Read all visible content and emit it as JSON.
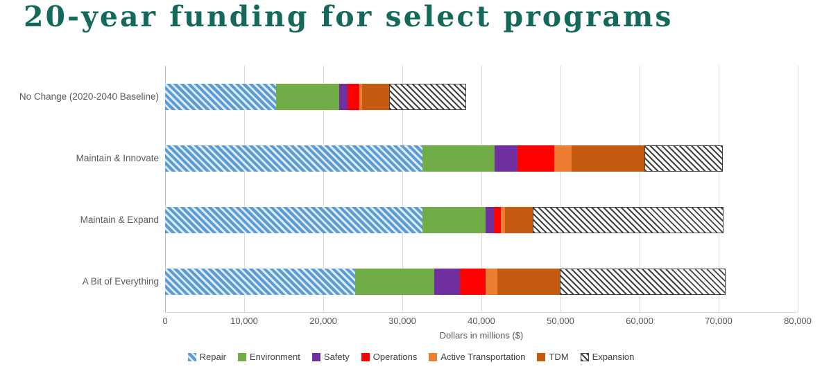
{
  "title": "20-year funding for select programs",
  "colors": {
    "title": "#15695B",
    "axis_text": "#595959",
    "gridline": "#D9D9D9"
  },
  "chart_data": {
    "type": "bar",
    "orientation": "horizontal",
    "stacked": true,
    "title": "20-year funding for select programs",
    "xlabel": "Dollars in millions ($)",
    "xlim": [
      0,
      80000
    ],
    "xticks": [
      0,
      10000,
      20000,
      30000,
      40000,
      50000,
      60000,
      70000,
      80000
    ],
    "xtick_labels": [
      "0",
      "10,000",
      "20,000",
      "30,000",
      "40,000",
      "50,000",
      "60,000",
      "70,000",
      "80,000"
    ],
    "grid": true,
    "legend_position": "bottom",
    "categories": [
      "No Change (2020-2040 Baseline)",
      "Maintain & Innovate",
      "Maintain & Expand",
      "A Bit of Everything"
    ],
    "series": [
      {
        "name": "Repair",
        "fill": "diagonal-stripes",
        "color": "#5B9BD5",
        "stripes": {
          "fg": "#5B9BD5",
          "bg": "#DDEBF7",
          "fg_w": 4,
          "bg_w": 3
        },
        "values": [
          14000,
          32500,
          32500,
          24000
        ]
      },
      {
        "name": "Environment",
        "fill": "solid",
        "color": "#70AD47",
        "values": [
          8000,
          9200,
          8000,
          10000
        ]
      },
      {
        "name": "Safety",
        "fill": "solid",
        "color": "#7030A0",
        "values": [
          1100,
          2900,
          1100,
          3300
        ]
      },
      {
        "name": "Operations",
        "fill": "solid",
        "color": "#FF0000",
        "values": [
          1500,
          4600,
          900,
          3200
        ]
      },
      {
        "name": "Active Transportation",
        "fill": "solid",
        "color": "#ED7D31",
        "values": [
          300,
          2200,
          500,
          1500
        ]
      },
      {
        "name": "TDM",
        "fill": "solid",
        "color": "#C55A11",
        "values": [
          3400,
          9200,
          3500,
          7900
        ]
      },
      {
        "name": "Expansion",
        "fill": "diagonal-stripes",
        "color": "#404040",
        "stripes": {
          "fg": "#404040",
          "bg": "#FFFFFF",
          "fg_w": 2,
          "bg_w": 4
        },
        "border": "#404040",
        "values": [
          9800,
          9900,
          24100,
          21000
        ]
      }
    ]
  }
}
